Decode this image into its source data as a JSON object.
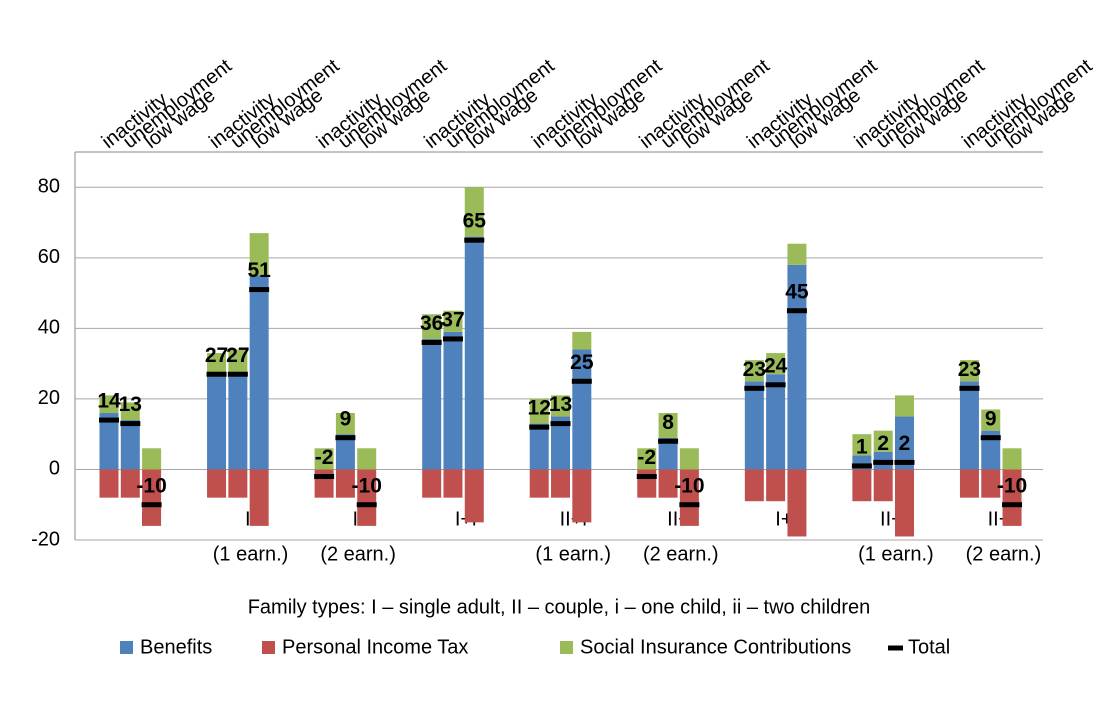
{
  "chart_data": {
    "type": "stacked_bar",
    "categories": [
      "inactivity",
      "unemployment",
      "low wage",
      "inactivity",
      "unemployment",
      "low wage",
      "inactivity",
      "unemployment",
      "low wage",
      "inactivity",
      "unemployment",
      "low wage",
      "inactivity",
      "unemployment",
      "low wage",
      "inactivity",
      "unemployment",
      "low wage",
      "inactivity",
      "unemployment",
      "low wage",
      "inactivity",
      "unemployment",
      "low wage",
      "inactivity",
      "unemployment",
      "low wage"
    ],
    "groups": [
      {
        "name": "I"
      },
      {
        "name": "II",
        "sub": "(1 earn.)"
      },
      {
        "name": "II",
        "sub": "(2 earn.)"
      },
      {
        "name": "I+i"
      },
      {
        "name": "II+i",
        "sub": "(1 earn.)"
      },
      {
        "name": "II+i",
        "sub": "(2 earn.)"
      },
      {
        "name": "I+ii"
      },
      {
        "name": "II+ii",
        "sub": "(1 earn.)"
      },
      {
        "name": "II+ii",
        "sub": "(2 earn.)"
      }
    ],
    "x_label": "Family types: I – single adult, II – couple, i – one child, ii – two children",
    "series": [
      {
        "name": "Benefits",
        "color": "#4f81bd",
        "values": [
          16,
          14,
          0,
          27,
          27,
          55,
          0,
          10,
          0,
          37,
          39,
          66,
          13,
          15,
          34,
          0,
          9,
          0,
          25,
          27,
          58,
          4,
          5,
          15,
          25,
          11,
          0
        ]
      },
      {
        "name": "Personal Income Tax",
        "color": "#c0504d",
        "values": [
          -8,
          -8,
          -16,
          -8,
          -8,
          -16,
          -8,
          -8,
          -16,
          -8,
          -8,
          -15,
          -8,
          -8,
          -15,
          -8,
          -8,
          -16,
          -9,
          -9,
          -19,
          -9,
          -9,
          -19,
          -8,
          -8,
          -16
        ]
      },
      {
        "name": "Social Insurance Contributions",
        "color": "#9bbb59",
        "values": [
          5,
          5,
          6,
          6,
          7,
          12,
          6,
          6,
          6,
          7,
          6,
          14,
          7,
          6,
          5,
          6,
          7,
          6,
          6,
          6,
          6,
          6,
          6,
          6,
          6,
          6,
          6
        ]
      },
      {
        "name": "Total",
        "color": "#000000",
        "marker": "dash",
        "values": [
          14,
          13,
          -10,
          27,
          27,
          51,
          -2,
          9,
          -10,
          36,
          37,
          65,
          12,
          13,
          25,
          -2,
          8,
          -10,
          23,
          24,
          45,
          1,
          2,
          2,
          23,
          9,
          -10
        ]
      }
    ],
    "ylim": [
      -20,
      90
    ],
    "yticks": [
      -20,
      0,
      20,
      40,
      60,
      80
    ],
    "grid": true,
    "legend": "bottom"
  }
}
